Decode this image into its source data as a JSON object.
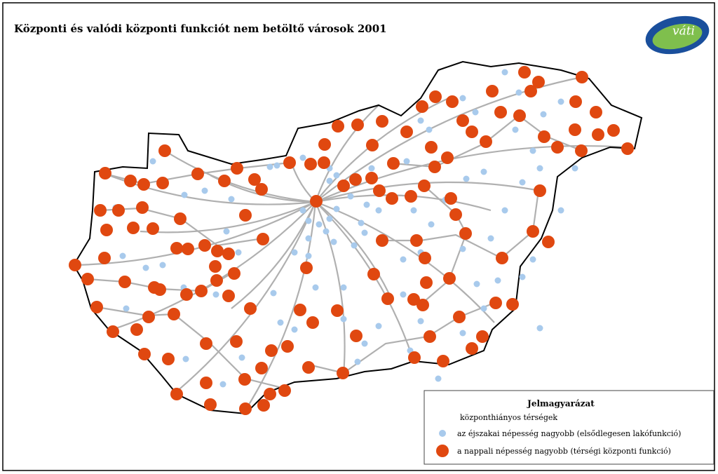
{
  "title": "Központi és valódi központi funkciót nem betöltő városok  2001",
  "logo": "váti",
  "legend": {
    "title": "Jelmagyarázat",
    "subtitle": "központhiányos térségek",
    "items": [
      {
        "label": "az éjszakai népesség nagyobb (elsődlegesen lakófunkció)"
      },
      {
        "label": "a nappali népesség nagyobb (térségi központi funkció)"
      }
    ]
  }
}
